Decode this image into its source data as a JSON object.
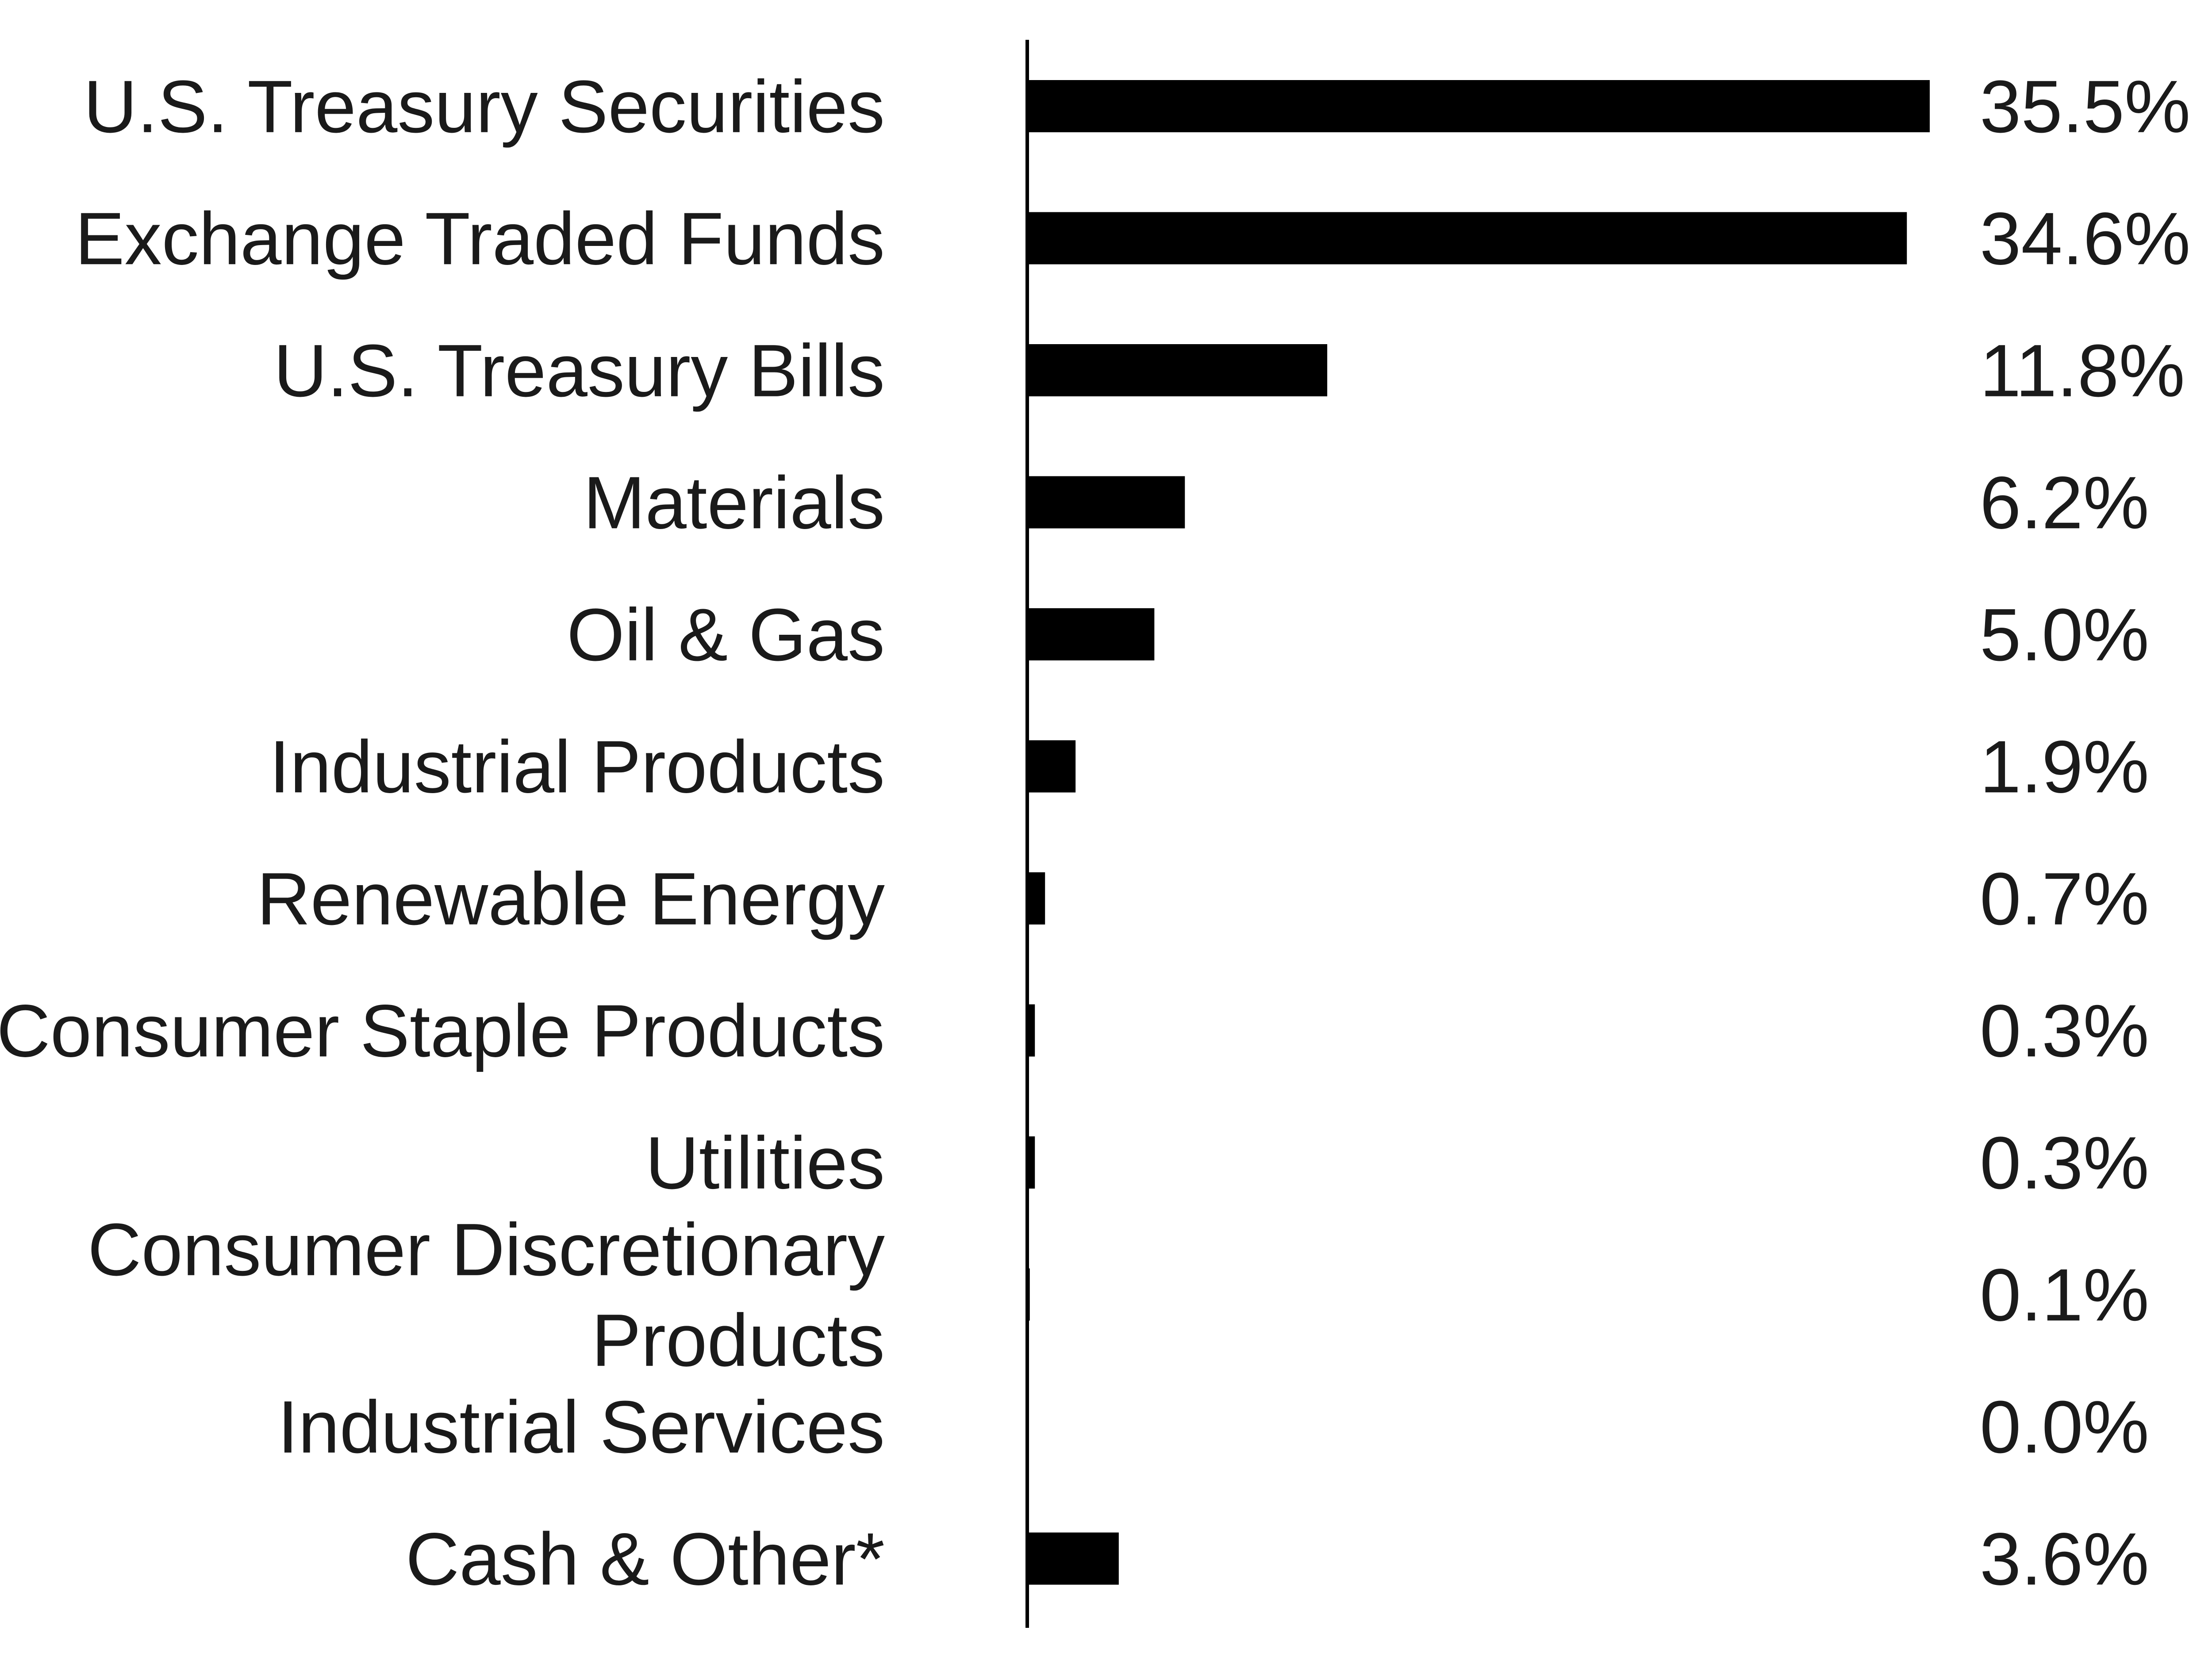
{
  "chart_data": {
    "type": "bar",
    "orientation": "horizontal",
    "title": "",
    "xlabel": "",
    "ylabel": "",
    "categories": [
      [
        "U.S. Treasury Securities"
      ],
      [
        "Exchange Traded Funds"
      ],
      [
        "U.S. Treasury Bills"
      ],
      [
        "Materials"
      ],
      [
        "Oil & Gas"
      ],
      [
        "Industrial Products"
      ],
      [
        "Renewable Energy"
      ],
      [
        "Consumer Staple Products"
      ],
      [
        "Utilities"
      ],
      [
        "Consumer Discretionary",
        "Products"
      ],
      [
        "Industrial Services"
      ],
      [
        "Cash & Other*"
      ]
    ],
    "values": [
      35.5,
      34.6,
      11.8,
      6.2,
      5.0,
      1.9,
      0.7,
      0.3,
      0.3,
      0.1,
      0.0,
      3.6
    ],
    "value_labels": [
      "35.5%",
      "34.6%",
      "11.8%",
      "6.2%",
      "5.0%",
      "1.9%",
      "0.7%",
      "0.3%",
      "0.3%",
      "0.1%",
      "0.0%",
      "3.6%"
    ],
    "xlim": [
      0,
      35.5
    ],
    "grid": false,
    "legend": "none",
    "bar_color": "#000000",
    "text_color": "#1a1a1a"
  }
}
